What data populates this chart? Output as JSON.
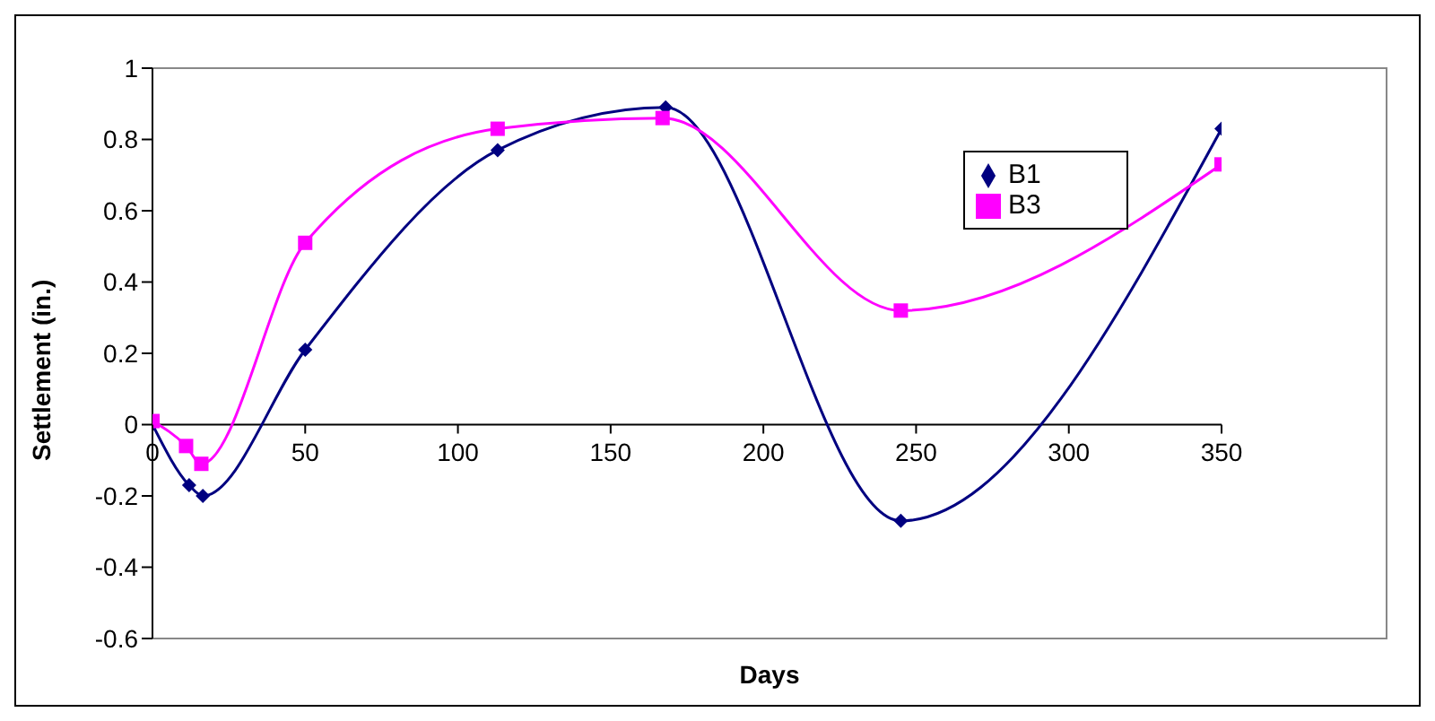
{
  "chart_data": {
    "type": "line",
    "xlabel": "Days",
    "ylabel": "Settlement (in.)",
    "xlim": [
      0,
      350
    ],
    "xticks": [
      0,
      50,
      100,
      150,
      200,
      250,
      300,
      350
    ],
    "ylim": [
      -0.6,
      1
    ],
    "yticks": [
      -0.6,
      -0.4,
      -0.2,
      0,
      0.2,
      0.4,
      0.6,
      0.8,
      1
    ],
    "grid": false,
    "legend": "top right",
    "line_style": "solid",
    "series": [
      {
        "name": "B1",
        "color": "#000080",
        "marker": "diamond",
        "x": [
          0,
          12,
          16.5,
          50,
          113,
          168,
          245,
          350
        ],
        "values": [
          0,
          -0.17,
          -0.2,
          0.21,
          0.77,
          0.89,
          -0.27,
          0.83
        ]
      },
      {
        "name": "B3",
        "color": "#ff00ff",
        "marker": "square",
        "x": [
          0,
          11,
          16,
          50,
          113,
          167,
          245,
          350
        ],
        "values": [
          0.01,
          -0.06,
          -0.11,
          0.51,
          0.83,
          0.86,
          0.32,
          0.73
        ]
      }
    ]
  }
}
